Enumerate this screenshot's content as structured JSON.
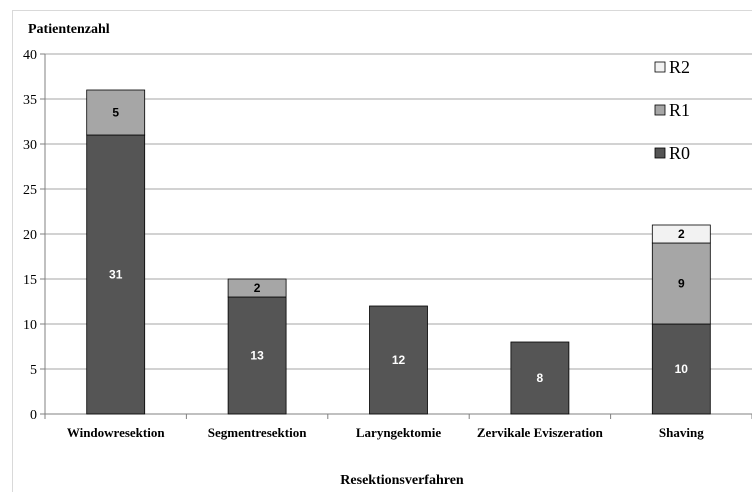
{
  "chart_data": {
    "type": "bar",
    "stacked": true,
    "ylabel": "Patientenzahl",
    "xlabel": "Resektionsverfahren",
    "ylim": [
      0,
      40
    ],
    "yticks": [
      0,
      5,
      10,
      15,
      20,
      25,
      30,
      35,
      40
    ],
    "grid": true,
    "legend_position": "top-right",
    "categories": [
      "Windowresektion",
      "Segmentresektion",
      "Laryngektomie",
      "Zervikale Eviszeration",
      "Shaving"
    ],
    "series": [
      {
        "name": "R0",
        "color": "#555555",
        "values": [
          31,
          13,
          12,
          8,
          10
        ]
      },
      {
        "name": "R1",
        "color": "#a6a6a6",
        "values": [
          5,
          2,
          0,
          0,
          9
        ]
      },
      {
        "name": "R2",
        "color": "#f2f2f2",
        "values": [
          0,
          0,
          0,
          0,
          2
        ]
      }
    ]
  }
}
